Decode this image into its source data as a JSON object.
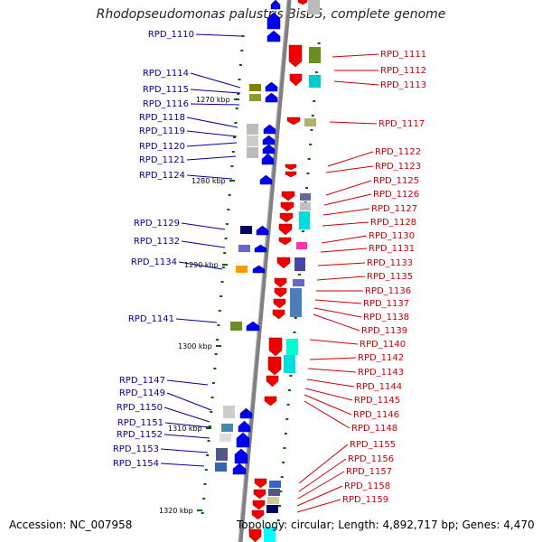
{
  "title": "Rhodopseudomonas palustris BisB5, complete genome",
  "accession": "Accession: NC_007958",
  "summary": "Topology: circular; Length: 4,892,717 bp; Genes: 4,470",
  "colors": {
    "left_label": "#000099",
    "right_label": "#cc0000",
    "minus_strand_gene": "#0000ee",
    "plus_strand_gene": "#ee0000",
    "backbone": "#808080",
    "tick": "#006600"
  },
  "scale_labels": [
    "1270 kbp",
    "1280 kbp",
    "1290 kbp",
    "1300 kbp",
    "1310 kbp",
    "1320 kbp"
  ],
  "left_labels": [
    "RPD_1110",
    "RPD_1114",
    "RPD_1115",
    "RPD_1116",
    "RPD_1118",
    "RPD_1119",
    "RPD_1120",
    "RPD_1121",
    "RPD_1124",
    "RPD_1129",
    "RPD_1132",
    "RPD_1134",
    "RPD_1141",
    "RPD_1147",
    "RPD_1149",
    "RPD_1150",
    "RPD_1151",
    "RPD_1152",
    "RPD_1153",
    "RPD_1154"
  ],
  "right_labels": [
    "RPD_1111",
    "RPD_1112",
    "RPD_1113",
    "RPD_1117",
    "RPD_1122",
    "RPD_1123",
    "RPD_1125",
    "RPD_1126",
    "RPD_1127",
    "RPD_1128",
    "RPD_1130",
    "RPD_1131",
    "RPD_1133",
    "RPD_1135",
    "RPD_1136",
    "RPD_1137",
    "RPD_1138",
    "RPD_1139",
    "RPD_1140",
    "RPD_1142",
    "RPD_1143",
    "RPD_1144",
    "RPD_1145",
    "RPD_1146",
    "RPD_1148",
    "RPD_1155",
    "RPD_1156",
    "RPD_1157",
    "RPD_1158",
    "RPD_1159"
  ]
}
